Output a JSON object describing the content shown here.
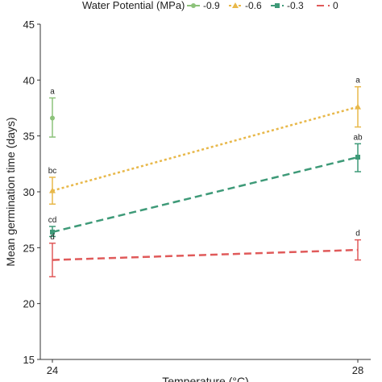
{
  "chart_data": {
    "type": "line",
    "title": "",
    "xlabel": "Temperature (°C)",
    "ylabel": "Mean germination time (days)",
    "x": [
      24,
      28
    ],
    "x_tick_labels": [
      "24",
      "28"
    ],
    "ylim": [
      15,
      45
    ],
    "y_ticks": [
      15,
      20,
      25,
      30,
      35,
      40,
      45
    ],
    "y_tick_labels": [
      "15",
      "20",
      "25",
      "30",
      "35",
      "40",
      "45"
    ],
    "grid": false,
    "legend_title": "Water Potential (MPa)",
    "legend_position": "top",
    "series": [
      {
        "name": "-0.9",
        "color": "#8cc27a",
        "marker": "circle",
        "line": "none",
        "points": [
          {
            "x": 24,
            "y": 36.6,
            "err_low": 34.9,
            "err_high": 38.4,
            "label": "a"
          }
        ]
      },
      {
        "name": "-0.6",
        "color": "#e8b84a",
        "marker": "triangle",
        "line": "dotted",
        "points": [
          {
            "x": 24,
            "y": 30.1,
            "err_low": 28.9,
            "err_high": 31.3,
            "label": "bc"
          },
          {
            "x": 28,
            "y": 37.6,
            "err_low": 35.8,
            "err_high": 39.4,
            "label": "a"
          }
        ]
      },
      {
        "name": "-0.3",
        "color": "#3e9a78",
        "marker": "square",
        "line": "dashed",
        "points": [
          {
            "x": 24,
            "y": 26.4,
            "err_low": 26.0,
            "err_high": 26.9,
            "label": "cd"
          },
          {
            "x": 28,
            "y": 33.1,
            "err_low": 31.8,
            "err_high": 34.3,
            "label": "ab"
          }
        ]
      },
      {
        "name": "0",
        "color": "#e05a5a",
        "marker": "none",
        "line": "dashed",
        "points": [
          {
            "x": 24,
            "y": 23.9,
            "err_low": 22.4,
            "err_high": 25.4,
            "label": "d"
          },
          {
            "x": 28,
            "y": 24.8,
            "err_low": 23.9,
            "err_high": 25.7,
            "label": "d"
          }
        ]
      }
    ]
  }
}
